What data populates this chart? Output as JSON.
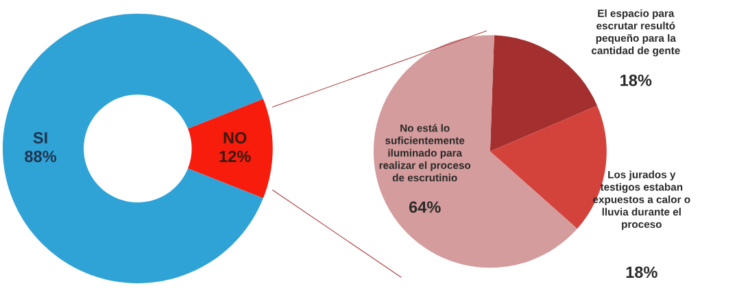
{
  "chart_data": [
    {
      "type": "donut",
      "categories": [
        "SI",
        "NO"
      ],
      "values": [
        88,
        12
      ],
      "value_labels": [
        "88%",
        "12%"
      ],
      "colors": [
        "#2fa3d6",
        "#f81c0c"
      ]
    },
    {
      "type": "pie",
      "categories": [
        "El espacio para\nescrutar resultó\npequeño para la\ncantidad de gente",
        "Los jurados y\ntestigos estaban\nexpuestos a calor o\nlluvia durante el\nproceso",
        "No está lo\nsuficientemente\niluminado para\nrealizar el proceso\nde escrutinio"
      ],
      "values": [
        18,
        18,
        64
      ],
      "value_labels": [
        "18%",
        "18%",
        "64%"
      ],
      "colors": [
        "#a3302e",
        "#d4423c",
        "#d49c9c"
      ]
    }
  ]
}
